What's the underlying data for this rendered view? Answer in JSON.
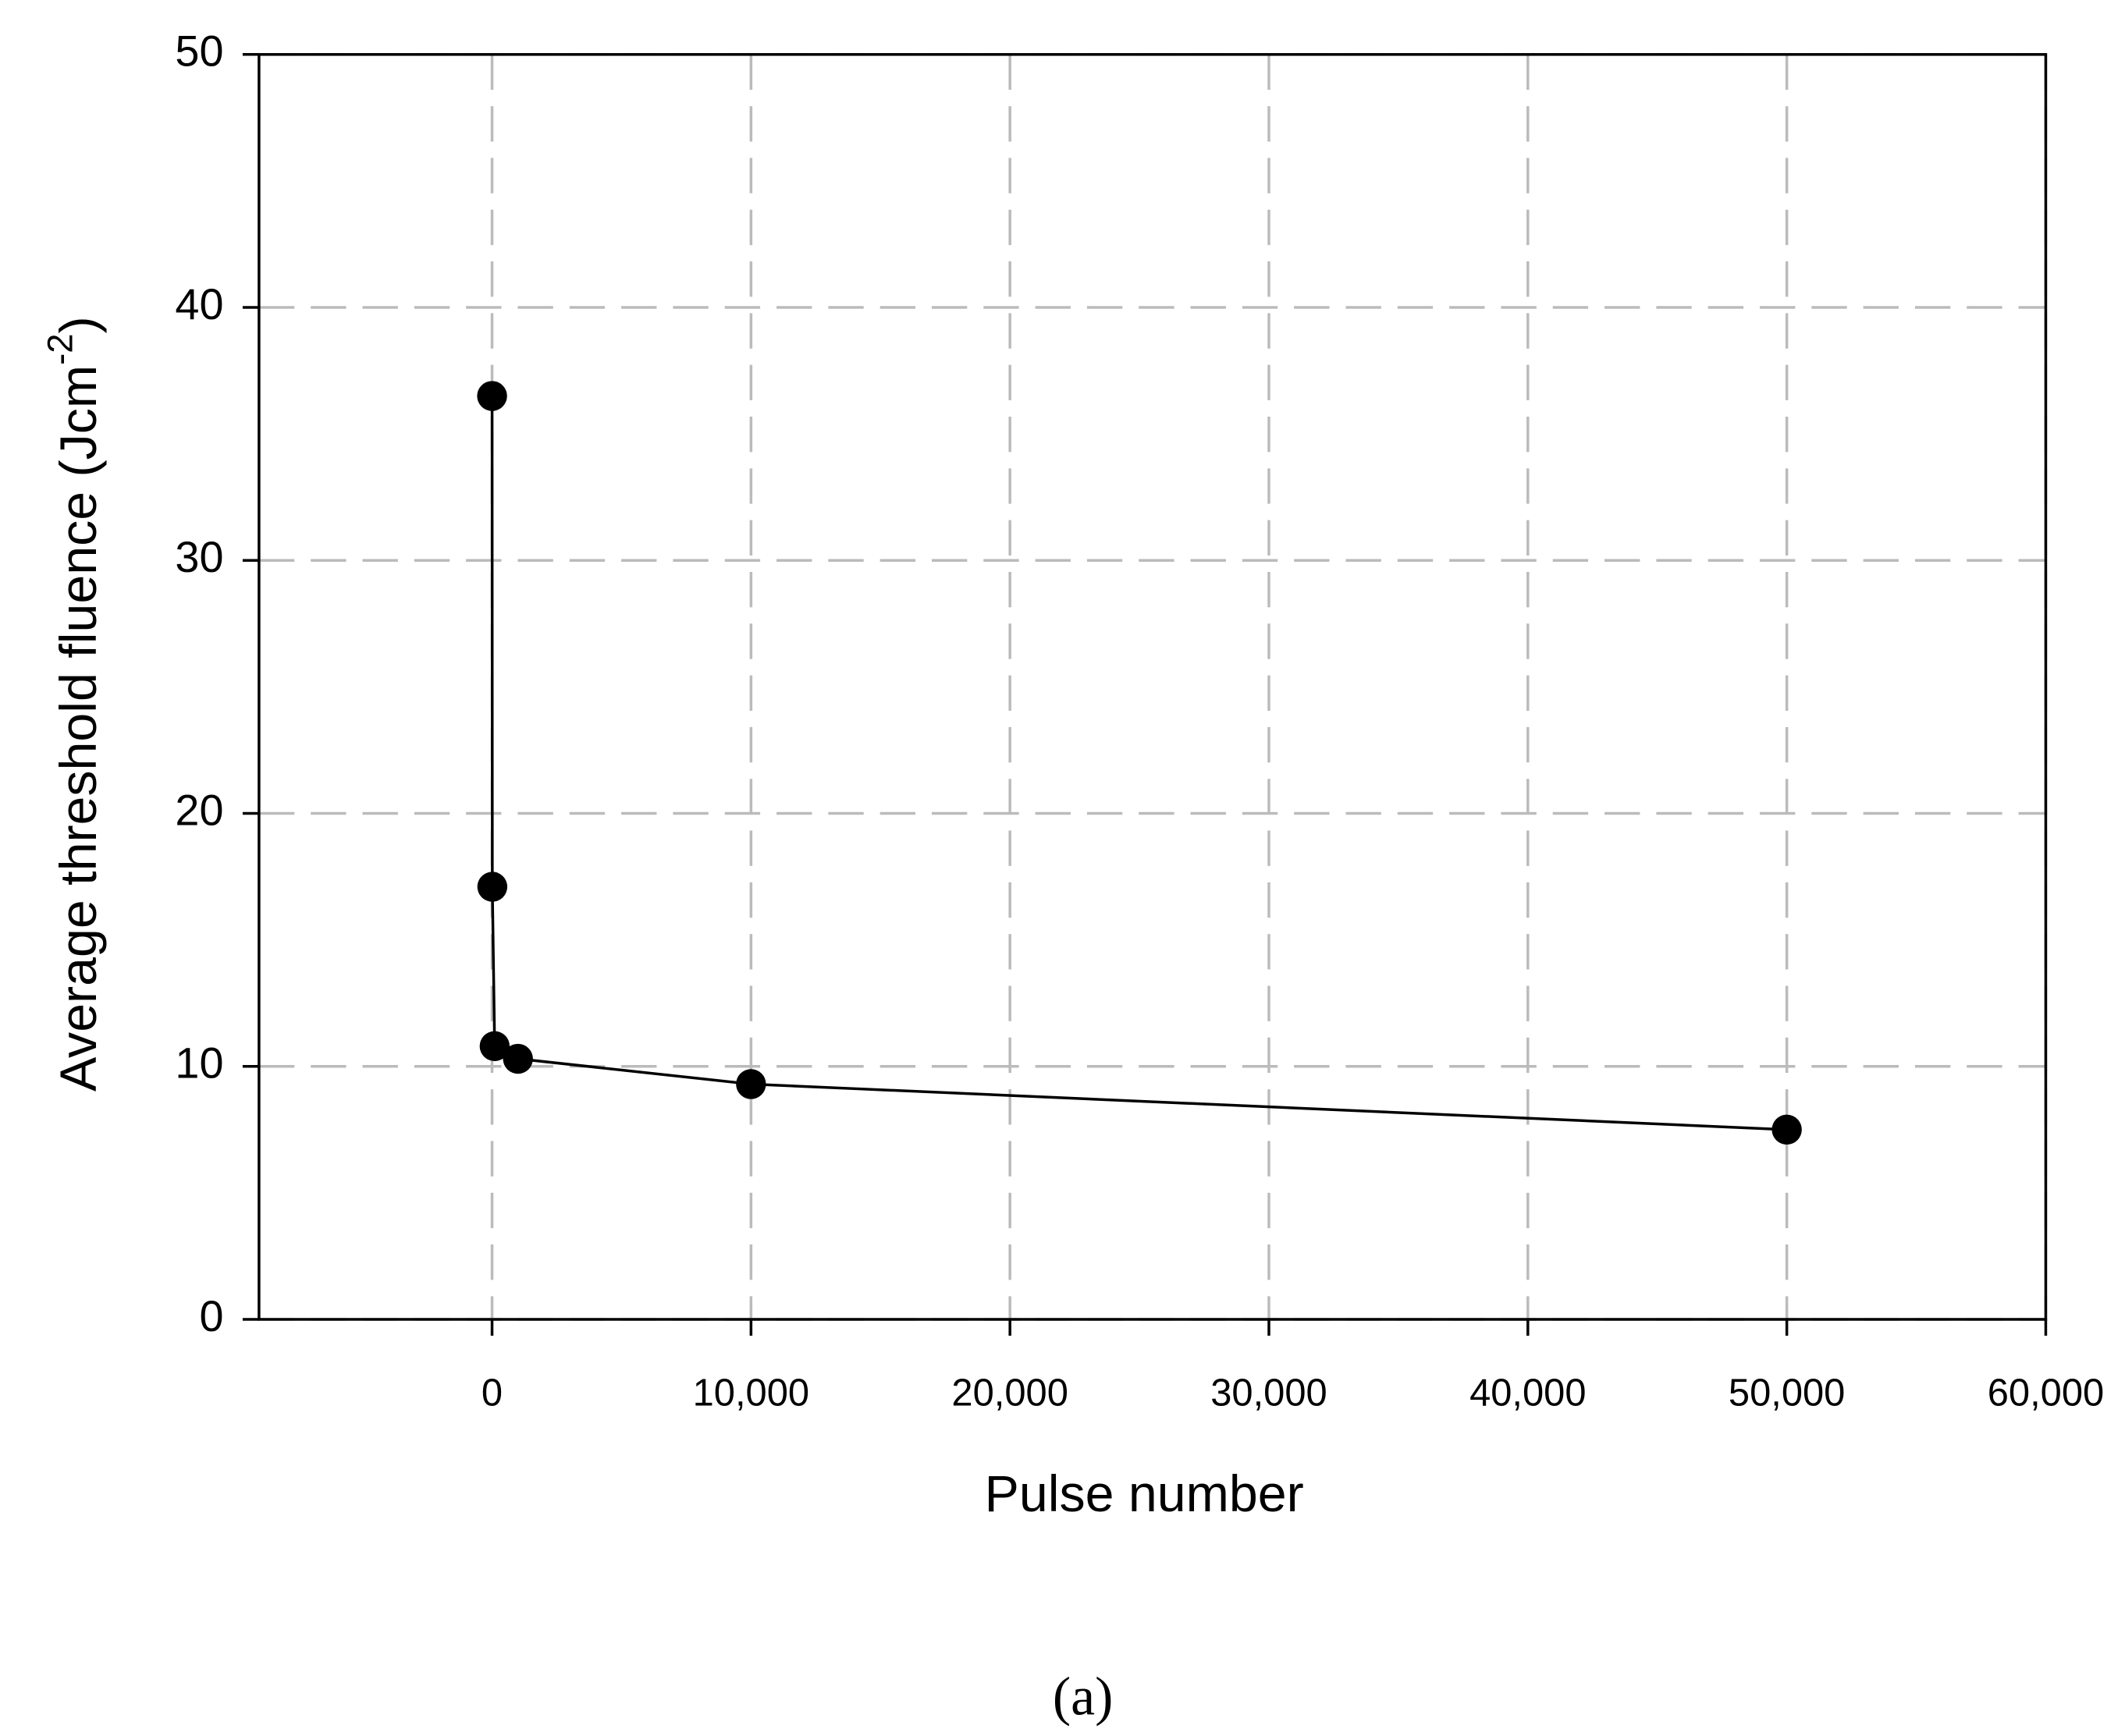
{
  "chart_data": {
    "type": "line",
    "xlabel": "Pulse number",
    "ylabel": {
      "text": "Average threshold fluence (Jcm",
      "superscript": "-2",
      "suffix": ")"
    },
    "caption": "(a)",
    "x": [
      1,
      10,
      100,
      1000,
      10000,
      50000
    ],
    "series": [
      {
        "color": "#000000",
        "values": [
          36.5,
          17.1,
          10.8,
          10.3,
          9.3,
          7.5
        ]
      }
    ],
    "xlim": [
      -9000,
      60000
    ],
    "xticks": [
      0,
      {
        "value": 10000,
        "label": "10,000"
      },
      {
        "value": 20000,
        "label": "20,000"
      },
      {
        "value": 30000,
        "label": "30,000"
      },
      {
        "value": 40000,
        "label": "40,000"
      },
      {
        "value": 50000,
        "label": "50,000"
      },
      {
        "value": 60000,
        "label": "60,000"
      }
    ],
    "ylim": [
      0,
      50
    ],
    "yticks": [
      0,
      10,
      20,
      30,
      40,
      50
    ],
    "grid": true
  }
}
